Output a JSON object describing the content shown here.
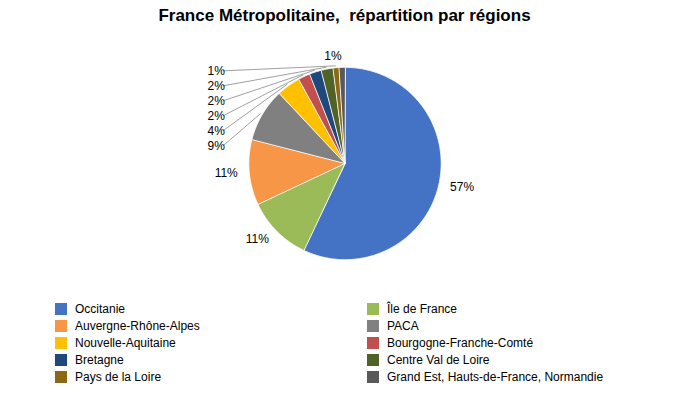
{
  "chart_data": {
    "type": "pie",
    "title": "France Métropolitaine,  répartition par régions",
    "categories": [
      "Occitanie",
      "Île de France",
      "Auvergne-Rhône-Alpes",
      "PACA",
      "Nouvelle-Aquitaine",
      "Bourgogne-Franche-Comté",
      "Bretagne",
      "Centre Val de Loire",
      "Pays de la Loire",
      "Grand Est, Hauts-de-France, Normandie"
    ],
    "values": [
      57,
      11,
      11,
      9,
      4,
      2,
      2,
      2,
      1,
      1
    ],
    "value_labels": [
      "57%",
      "11%",
      "11%",
      "9%",
      "4%",
      "2%",
      "2%",
      "2%",
      "1%",
      "1%"
    ],
    "colors": [
      "#4472C4",
      "#9BBB59",
      "#F79646",
      "#808080",
      "#FFC000",
      "#C0504D",
      "#1F497D",
      "#4F6228",
      "#8B6914",
      "#595959"
    ],
    "data_labels": true,
    "legend": "bottom"
  }
}
